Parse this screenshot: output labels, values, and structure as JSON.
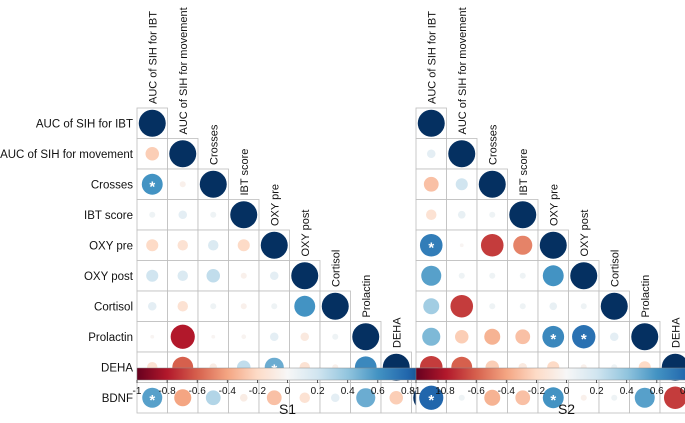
{
  "chart_data": {
    "type": "heatmap",
    "variables": [
      "AUC of SIH for IBT",
      "AUC of SIH for movement",
      "Crosses",
      "IBT score",
      "OXY pre",
      "OXY post",
      "Cortisol",
      "Prolactin",
      "DEHA",
      "BDNF"
    ],
    "colorbar": {
      "range": [
        -1,
        1
      ],
      "ticks": [
        "-1",
        "-0.8",
        "-0.6",
        "-0.4",
        "-0.2",
        "0",
        "0.2",
        "0.4",
        "0.6",
        "0.8",
        "1"
      ],
      "colors": [
        "#67001f",
        "#b2182b",
        "#d6604d",
        "#f4a582",
        "#fddbc7",
        "#f7f7f7",
        "#d1e5f0",
        "#92c5de",
        "#4393c3",
        "#2166ac",
        "#053061"
      ]
    },
    "panels": [
      {
        "label": "S1",
        "significance_marker": "*",
        "matrix": [
          [
            1
          ],
          [
            -0.25,
            1
          ],
          [
            0.6,
            -0.05,
            1
          ],
          [
            0.05,
            0.1,
            0.05,
            1
          ],
          [
            -0.2,
            -0.15,
            0.15,
            -0.2,
            1
          ],
          [
            0.2,
            0.15,
            0.25,
            -0.05,
            0.1,
            1
          ],
          [
            0.1,
            -0.15,
            0.05,
            -0.05,
            0.05,
            0.6,
            1
          ],
          [
            -0.02,
            -0.8,
            -0.02,
            -0.03,
            0.1,
            -0.1,
            0.05,
            1
          ],
          [
            -0.15,
            -0.6,
            -0.08,
            0.25,
            0.5,
            -0.15,
            -0.05,
            0.65,
            1
          ],
          [
            0.55,
            -0.4,
            0.3,
            -0.08,
            -0.3,
            -0.15,
            0.1,
            0.5,
            -0.25,
            1
          ]
        ],
        "significant": [
          [
            2,
            0
          ],
          [
            8,
            4
          ],
          [
            9,
            0
          ]
        ]
      },
      {
        "label": "S2",
        "significance_marker": "*",
        "matrix": [
          [
            1
          ],
          [
            0.1,
            1
          ],
          [
            -0.3,
            0.2,
            1
          ],
          [
            -0.15,
            0.08,
            0.05,
            1
          ],
          [
            0.7,
            -0.02,
            -0.7,
            -0.5,
            1
          ],
          [
            0.55,
            0.05,
            0.05,
            0.05,
            0.6,
            1
          ],
          [
            0.35,
            -0.7,
            0.05,
            0.05,
            0.08,
            0.05,
            1
          ],
          [
            0.45,
            -0.25,
            -0.35,
            -0.3,
            0.65,
            0.75,
            0.1,
            1
          ],
          [
            -0.7,
            -0.6,
            -0.25,
            -0.1,
            -0.2,
            -0.05,
            0.05,
            -0.2,
            1
          ],
          [
            0.8,
            0.05,
            -0.35,
            -0.3,
            0.6,
            -0.05,
            0.05,
            0.55,
            -0.7,
            1
          ]
        ],
        "significant": [
          [
            4,
            0
          ],
          [
            7,
            4
          ],
          [
            7,
            5
          ],
          [
            9,
            0
          ],
          [
            9,
            4
          ]
        ]
      }
    ]
  }
}
